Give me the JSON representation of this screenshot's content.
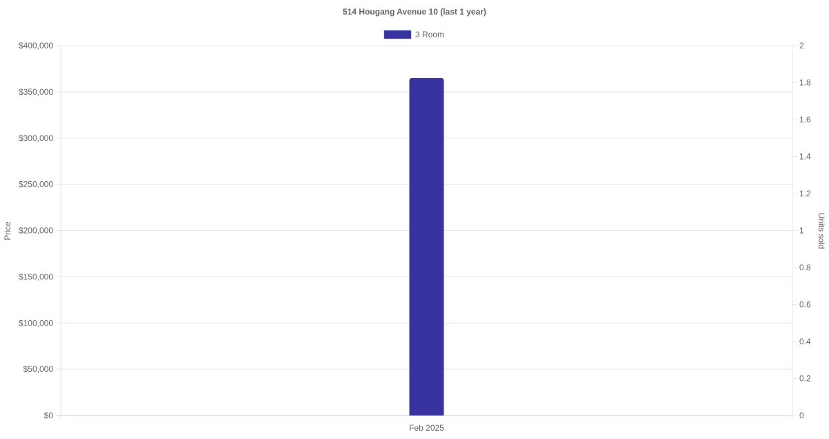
{
  "chart_data": {
    "type": "bar",
    "title": "514 Hougang Avenue 10 (last 1 year)",
    "categories": [
      "Feb 2025"
    ],
    "series": [
      {
        "name": "3 Room",
        "values": [
          365000
        ],
        "color": "#3833a0",
        "axis": "left"
      }
    ],
    "ylabel": "Price",
    "y2label": "Units sold",
    "ylim": [
      0,
      400000
    ],
    "y2lim": [
      0,
      2
    ],
    "yticks": [
      "$0",
      "$50,000",
      "$100,000",
      "$150,000",
      "$200,000",
      "$250,000",
      "$300,000",
      "$350,000",
      "$400,000"
    ],
    "y2ticks": [
      "0",
      "0.2",
      "0.4",
      "0.6",
      "0.8",
      "1",
      "1.2",
      "1.4",
      "1.6",
      "1.8",
      "2"
    ],
    "grid": true,
    "legend": "top"
  }
}
